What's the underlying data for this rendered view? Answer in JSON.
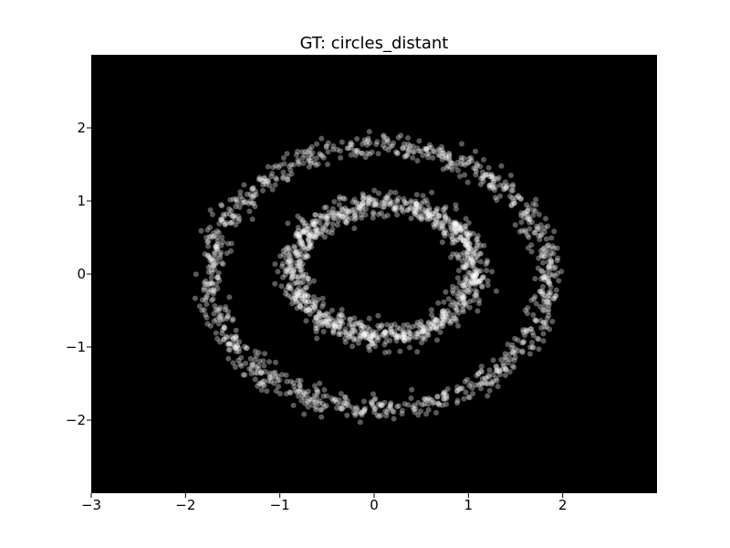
{
  "chart_data": {
    "type": "scatter",
    "title": "GT: circles_distant",
    "xlabel": "",
    "ylabel": "",
    "xlim": [
      -3,
      3
    ],
    "ylim": [
      -3,
      3
    ],
    "x_ticks": [
      {
        "value": -3,
        "label": "−3"
      },
      {
        "value": -2,
        "label": "−2"
      },
      {
        "value": -1,
        "label": "−1"
      },
      {
        "value": 0,
        "label": "0"
      },
      {
        "value": 1,
        "label": "1"
      },
      {
        "value": 2,
        "label": "2"
      }
    ],
    "y_ticks": [
      {
        "value": -2,
        "label": "−2"
      },
      {
        "value": -1,
        "label": "−1"
      },
      {
        "value": 0,
        "label": "0"
      },
      {
        "value": 1,
        "label": "1"
      },
      {
        "value": 2,
        "label": "2"
      }
    ],
    "grid": false,
    "background_color": "#000000",
    "point_color": "#ffffff",
    "point_opacity": 0.35,
    "series": [
      {
        "shape": "ring",
        "center": [
          0.05,
          -0.05
        ],
        "radius_x": 1.8,
        "radius_y": 1.8,
        "noise": 0.08,
        "count": 1000
      },
      {
        "shape": "ring",
        "center": [
          0.1,
          0.05
        ],
        "radius_x": 0.95,
        "radius_y": 0.9,
        "noise": 0.09,
        "count": 1000
      }
    ]
  }
}
